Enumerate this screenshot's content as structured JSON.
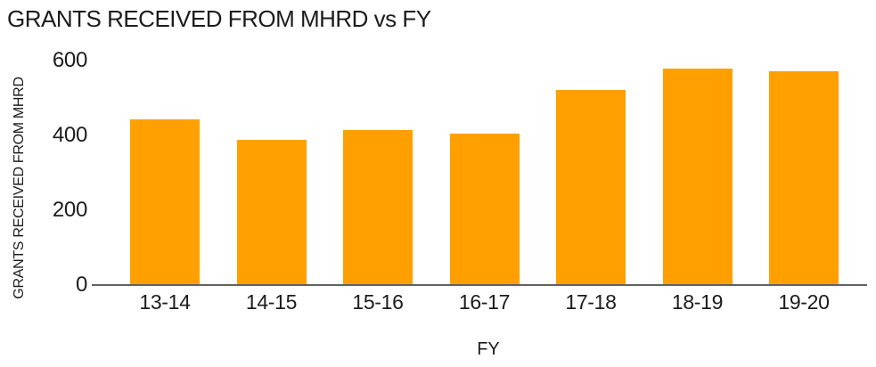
{
  "title": "GRANTS RECEIVED FROM MHRD vs FY",
  "chart_data": {
    "type": "bar",
    "title": "GRANTS RECEIVED FROM MHRD vs FY",
    "xlabel": "FY",
    "ylabel": "GRANTS RECEIVED FROM MHRD",
    "categories": [
      "13-14",
      "14-15",
      "15-16",
      "16-17",
      "17-18",
      "18-19",
      "19-20"
    ],
    "values": [
      442,
      388,
      415,
      404,
      522,
      578,
      572
    ],
    "ylim": [
      0,
      600
    ],
    "yticks": [
      0,
      200,
      400,
      600
    ],
    "grid": false,
    "legend": false,
    "bar_color": "#FFA000",
    "axis_line_color": "#616161",
    "text_color": "#1c1c1c"
  }
}
